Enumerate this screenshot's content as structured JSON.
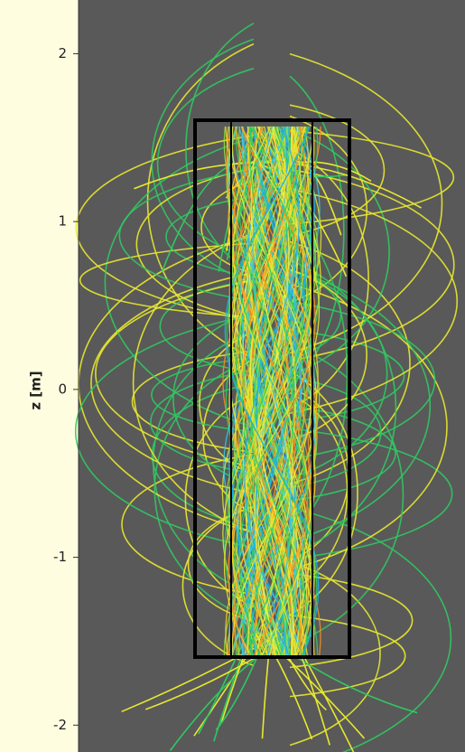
{
  "chart_data": {
    "type": "fieldlines",
    "ylabel": "z [m]",
    "ylim": [
      -2.16,
      2.32
    ],
    "yticks": [
      2,
      1,
      0,
      -1,
      -2
    ]
  }
}
